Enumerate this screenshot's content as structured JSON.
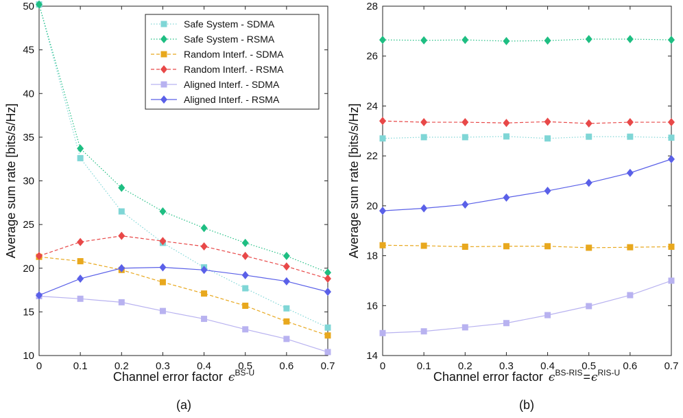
{
  "chart_data": [
    {
      "type": "line",
      "panel_label": "(a)",
      "xlabel_prefix": "Channel error factor",
      "xlabel_symbol": "ϵ",
      "xlabel_superscript": "BS-U",
      "ylabel": "Average sum rate [bits/s/Hz]",
      "x": [
        0,
        0.1,
        0.2,
        0.3,
        0.4,
        0.5,
        0.6,
        0.7
      ],
      "xticks": [
        "0",
        "0.1",
        "0.2",
        "0.3",
        "0.4",
        "0.5",
        "0.6",
        "0.7"
      ],
      "xlim": [
        0,
        0.7
      ],
      "ylim": [
        10,
        50
      ],
      "yticks": [
        "10",
        "15",
        "20",
        "25",
        "30",
        "35",
        "40",
        "45",
        "50"
      ],
      "legend_position": "top-right",
      "series": [
        {
          "name": "Safe System - SDMA",
          "color": "#7fd6d6",
          "dash": "1.5 2.5",
          "marker": "square",
          "values": [
            50.2,
            32.6,
            26.5,
            22.9,
            20.1,
            17.7,
            15.4,
            13.2
          ]
        },
        {
          "name": "Safe System - RSMA",
          "color": "#1ebe82",
          "dash": "1.5 2.5",
          "marker": "diamond",
          "values": [
            50.2,
            33.7,
            29.2,
            26.5,
            24.6,
            22.9,
            21.4,
            19.5
          ]
        },
        {
          "name": "Random Interf. - SDMA",
          "color": "#e8a81e",
          "dash": "5 3",
          "marker": "square",
          "values": [
            21.3,
            20.8,
            19.8,
            18.4,
            17.1,
            15.7,
            13.9,
            12.3
          ]
        },
        {
          "name": "Random Interf. - RSMA",
          "color": "#e84848",
          "dash": "5 3",
          "marker": "diamond",
          "values": [
            21.4,
            23.0,
            23.7,
            23.1,
            22.5,
            21.4,
            20.2,
            18.8
          ]
        },
        {
          "name": "Aligned Interf. - SDMA",
          "color": "#b8b2f0",
          "dash": "",
          "marker": "square",
          "values": [
            16.8,
            16.5,
            16.1,
            15.1,
            14.2,
            13.0,
            11.9,
            10.4
          ]
        },
        {
          "name": "Aligned Interf. - RSMA",
          "color": "#5a60e8",
          "dash": "",
          "marker": "diamond",
          "values": [
            16.9,
            18.8,
            20.0,
            20.1,
            19.8,
            19.2,
            18.5,
            17.3
          ]
        }
      ]
    },
    {
      "type": "line",
      "panel_label": "(b)",
      "xlabel_prefix": "Channel error factor",
      "xlabel_symbol": "ϵ",
      "xlabel_superscript": "BS-RIS",
      "xlabel_equals": "=",
      "xlabel_symbol2": "ϵ",
      "xlabel_superscript2": "RIS-U",
      "ylabel": "Average sum rate [bits/s/Hz]",
      "x": [
        0,
        0.1,
        0.2,
        0.3,
        0.4,
        0.5,
        0.6,
        0.7
      ],
      "xticks": [
        "0",
        "0.1",
        "0.2",
        "0.3",
        "0.4",
        "0.5",
        "0.6",
        "0.7"
      ],
      "xlim": [
        0,
        0.7
      ],
      "ylim": [
        14,
        28
      ],
      "yticks": [
        "14",
        "16",
        "18",
        "20",
        "22",
        "24",
        "26",
        "28"
      ],
      "series": [
        {
          "name": "Safe System - SDMA",
          "color": "#7fd6d6",
          "dash": "1.5 2.5",
          "marker": "square",
          "values": [
            22.7,
            22.75,
            22.75,
            22.78,
            22.7,
            22.77,
            22.77,
            22.73
          ]
        },
        {
          "name": "Safe System - RSMA",
          "color": "#1ebe82",
          "dash": "1.5 2.5",
          "marker": "diamond",
          "values": [
            26.65,
            26.63,
            26.65,
            26.6,
            26.62,
            26.68,
            26.68,
            26.65
          ]
        },
        {
          "name": "Random Interf. - SDMA",
          "color": "#e8a81e",
          "dash": "5 3",
          "marker": "square",
          "values": [
            18.42,
            18.4,
            18.36,
            18.38,
            18.38,
            18.32,
            18.34,
            18.36
          ]
        },
        {
          "name": "Random Interf. - RSMA",
          "color": "#e84848",
          "dash": "5 3",
          "marker": "diamond",
          "values": [
            23.4,
            23.35,
            23.35,
            23.32,
            23.37,
            23.3,
            23.35,
            23.35
          ]
        },
        {
          "name": "Aligned Interf. - SDMA",
          "color": "#b8b2f0",
          "dash": "",
          "marker": "square",
          "values": [
            14.9,
            14.97,
            15.13,
            15.3,
            15.62,
            15.98,
            16.42,
            17.0
          ]
        },
        {
          "name": "Aligned Interf. - RSMA",
          "color": "#5a60e8",
          "dash": "",
          "marker": "diamond",
          "values": [
            19.8,
            19.9,
            20.05,
            20.33,
            20.6,
            20.92,
            21.32,
            21.87
          ]
        }
      ]
    }
  ]
}
